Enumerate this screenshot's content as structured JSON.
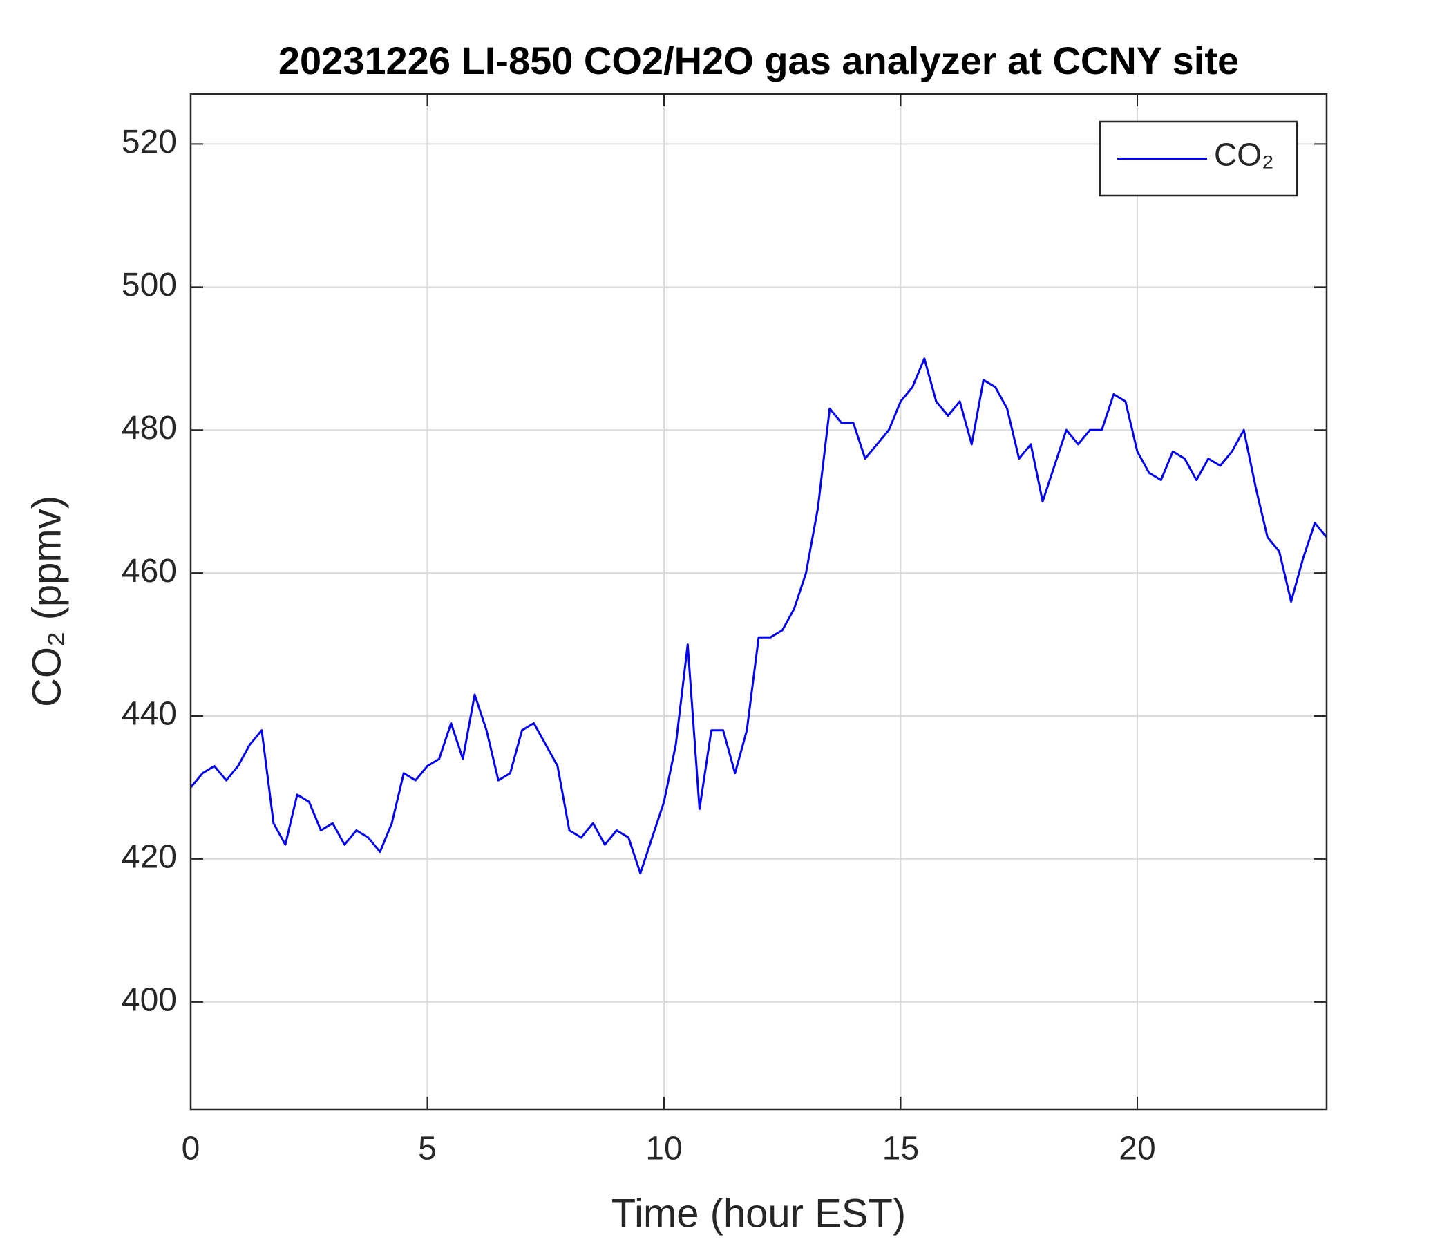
{
  "chart_data": {
    "type": "line",
    "title": "20231226 LI-850 CO2/H2O gas analyzer at CCNY site",
    "x_label": "Time (hour EST)",
    "y_label": "CO₂ (ppmv)",
    "x": [
      0,
      0.25,
      0.5,
      0.75,
      1,
      1.25,
      1.5,
      1.75,
      2,
      2.25,
      2.5,
      2.75,
      3,
      3.25,
      3.5,
      3.75,
      4,
      4.25,
      4.5,
      4.75,
      5,
      5.25,
      5.5,
      5.75,
      6,
      6.25,
      6.5,
      6.75,
      7,
      7.25,
      7.5,
      7.75,
      8,
      8.25,
      8.5,
      8.75,
      9,
      9.25,
      9.5,
      9.75,
      10,
      10.25,
      10.5,
      10.75,
      11,
      11.25,
      11.5,
      11.75,
      12,
      12.25,
      12.5,
      12.75,
      13,
      13.25,
      13.5,
      13.75,
      14,
      14.25,
      14.5,
      14.75,
      15,
      15.25,
      15.5,
      15.75,
      16,
      16.25,
      16.5,
      16.75,
      17,
      17.25,
      17.5,
      17.75,
      18,
      18.25,
      18.5,
      18.75,
      19,
      19.25,
      19.5,
      19.75,
      20,
      20.25,
      20.5,
      20.75,
      21,
      21.25,
      21.5,
      21.75,
      22,
      22.25,
      22.5,
      22.75,
      23,
      23.25,
      23.5,
      23.75,
      24
    ],
    "series": [
      {
        "name": "CO₂",
        "color": "#0000ff",
        "values": [
          430,
          432,
          433,
          431,
          433,
          436,
          438,
          425,
          422,
          429,
          428,
          424,
          425,
          422,
          424,
          423,
          421,
          425,
          432,
          431,
          433,
          434,
          439,
          434,
          443,
          438,
          431,
          432,
          438,
          439,
          436,
          433,
          424,
          423,
          425,
          422,
          424,
          423,
          418,
          423,
          428,
          436,
          450,
          427,
          438,
          438,
          432,
          438,
          451,
          451,
          452,
          455,
          460,
          469,
          483,
          481,
          481,
          476,
          478,
          480,
          484,
          486,
          490,
          484,
          482,
          484,
          478,
          487,
          486,
          483,
          476,
          478,
          470,
          475,
          480,
          478,
          480,
          480,
          485,
          484,
          477,
          474,
          473,
          477,
          476,
          473,
          476,
          475,
          477,
          480,
          472,
          465,
          463,
          456,
          462,
          467,
          465
        ]
      }
    ],
    "xlim": [
      0,
      24
    ],
    "xticks": [
      0,
      5,
      10,
      15,
      20
    ],
    "ylim": [
      385,
      527
    ],
    "yticks": [
      400,
      420,
      440,
      460,
      480,
      500,
      520
    ],
    "grid": true,
    "legend": "upper right"
  }
}
